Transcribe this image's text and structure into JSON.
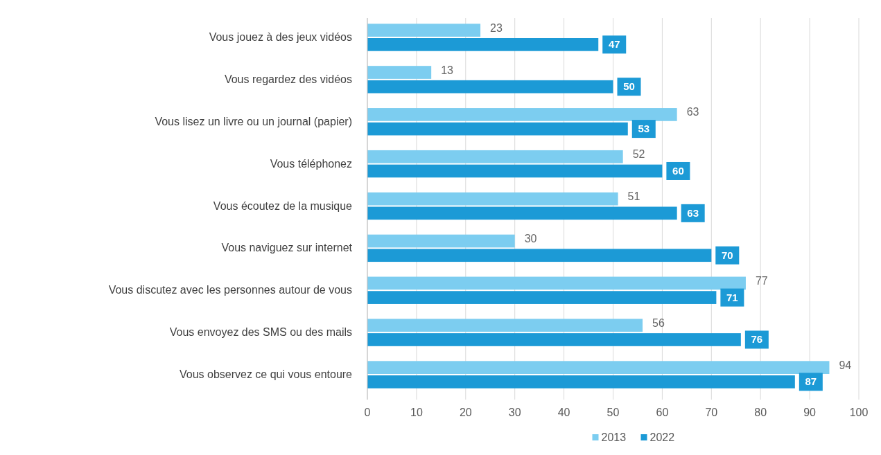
{
  "chart_data": {
    "type": "bar",
    "orientation": "horizontal",
    "categories": [
      "Vous jouez à des jeux vidéos",
      "Vous regardez des vidéos",
      "Vous lisez un livre ou un journal (papier)",
      "Vous téléphonez",
      "Vous écoutez de la musique",
      "Vous naviguez sur internet",
      "Vous discutez avec les personnes autour de vous",
      "Vous envoyez des SMS ou des mails",
      "Vous observez ce qui vous entoure"
    ],
    "series": [
      {
        "name": "2013",
        "color": "#7ccdf0",
        "values": [
          23,
          13,
          63,
          52,
          51,
          30,
          77,
          56,
          94
        ]
      },
      {
        "name": "2022",
        "color": "#1c9ad6",
        "values": [
          47,
          50,
          53,
          60,
          63,
          70,
          71,
          76,
          87
        ]
      }
    ],
    "xlim": [
      0,
      100
    ],
    "xticks": [
      0,
      10,
      20,
      30,
      40,
      50,
      60,
      70,
      80,
      90,
      100
    ],
    "grid": "x",
    "legend": "bottom",
    "data_labels": true
  }
}
